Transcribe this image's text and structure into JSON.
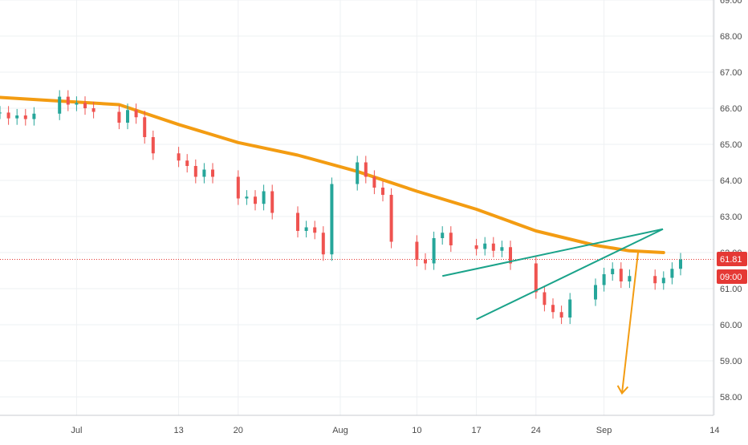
{
  "chart_data": {
    "type": "line",
    "symbol_note": "",
    "x_ticks": [
      "Jul",
      "13",
      "20",
      "Aug",
      "10",
      "17",
      "24",
      "Sep",
      "14"
    ],
    "y_ticks": [
      "58.00",
      "59.00",
      "60.00",
      "61.00",
      "62.00",
      "63.00",
      "64.00",
      "65.00",
      "66.00",
      "67.00",
      "68.00",
      "69.00"
    ],
    "ylim": [
      57.5,
      69.2
    ],
    "grid": true,
    "last_price": "61.81",
    "countdown": "09:00",
    "colors": {
      "up": "#26a69a",
      "down": "#ef5350",
      "ma": "#f39c12",
      "pattern": "#1aa38a",
      "projection": "#f39c12",
      "price_line": "#e53935",
      "grid": "#eef0f3"
    },
    "series": [
      {
        "kind": "price",
        "points": [
          [
            "06-22",
            65.88
          ],
          [
            "06-23",
            65.72
          ],
          [
            "06-24",
            65.8
          ],
          [
            "06-25",
            65.7
          ],
          [
            "06-26",
            65.85
          ],
          [
            "06-29",
            66.32
          ],
          [
            "06-30",
            66.1
          ],
          [
            "07-01",
            66.15
          ],
          [
            "07-02",
            66.0
          ],
          [
            "07-03",
            65.9
          ],
          [
            "07-06",
            65.6
          ],
          [
            "07-07",
            65.95
          ],
          [
            "07-08",
            65.75
          ],
          [
            "07-09",
            65.2
          ],
          [
            "07-10",
            64.75
          ],
          [
            "07-13",
            64.55
          ],
          [
            "07-14",
            64.4
          ],
          [
            "07-15",
            64.1
          ],
          [
            "07-16",
            64.3
          ],
          [
            "07-17",
            64.1
          ],
          [
            "07-20",
            63.5
          ],
          [
            "07-21",
            63.55
          ],
          [
            "07-22",
            63.35
          ],
          [
            "07-23",
            63.7
          ],
          [
            "07-24",
            63.1
          ],
          [
            "07-27",
            62.6
          ],
          [
            "07-28",
            62.7
          ],
          [
            "07-29",
            62.55
          ],
          [
            "07-30",
            61.95
          ],
          [
            "07-31",
            63.9
          ],
          [
            "08-03",
            64.5
          ],
          [
            "08-04",
            64.1
          ],
          [
            "08-05",
            63.8
          ],
          [
            "08-06",
            63.6
          ],
          [
            "08-07",
            62.3
          ],
          [
            "08-10",
            61.8
          ],
          [
            "08-11",
            61.7
          ],
          [
            "08-12",
            62.4
          ],
          [
            "08-13",
            62.55
          ],
          [
            "08-14",
            62.2
          ],
          [
            "08-17",
            62.1
          ],
          [
            "08-18",
            62.25
          ],
          [
            "08-19",
            62.05
          ],
          [
            "08-20",
            62.15
          ],
          [
            "08-21",
            61.7
          ],
          [
            "08-24",
            60.9
          ],
          [
            "08-25",
            60.55
          ],
          [
            "08-26",
            60.35
          ],
          [
            "08-27",
            60.2
          ],
          [
            "08-28",
            60.7
          ],
          [
            "08-31",
            61.1
          ],
          [
            "09-01",
            61.4
          ],
          [
            "09-02",
            61.55
          ],
          [
            "09-03",
            61.2
          ],
          [
            "09-04",
            61.35
          ],
          [
            "09-07",
            61.15
          ],
          [
            "09-08",
            61.3
          ],
          [
            "09-09",
            61.55
          ],
          [
            "09-10",
            61.81
          ]
        ]
      },
      {
        "kind": "moving_average",
        "points": [
          [
            "06-22",
            66.3
          ],
          [
            "06-29",
            66.2
          ],
          [
            "07-06",
            66.1
          ],
          [
            "07-13",
            65.55
          ],
          [
            "07-20",
            65.05
          ],
          [
            "07-27",
            64.7
          ],
          [
            "08-03",
            64.25
          ],
          [
            "08-10",
            63.7
          ],
          [
            "08-17",
            63.2
          ],
          [
            "08-24",
            62.6
          ],
          [
            "08-31",
            62.2
          ],
          [
            "09-04",
            62.05
          ],
          [
            "09-08",
            62.0
          ]
        ]
      }
    ],
    "pattern_lines": [
      {
        "name": "",
        "from": [
          "08-13",
          61.35
        ],
        "to": [
          "09-28",
          62.65
        ]
      },
      {
        "name": "",
        "from": [
          "08-17",
          60.15
        ],
        "to": [
          "09-28",
          62.65
        ]
      }
    ],
    "projection": {
      "from": [
        "09-05",
        62.0
      ],
      "to": [
        "09-22",
        58.1
      ]
    }
  }
}
